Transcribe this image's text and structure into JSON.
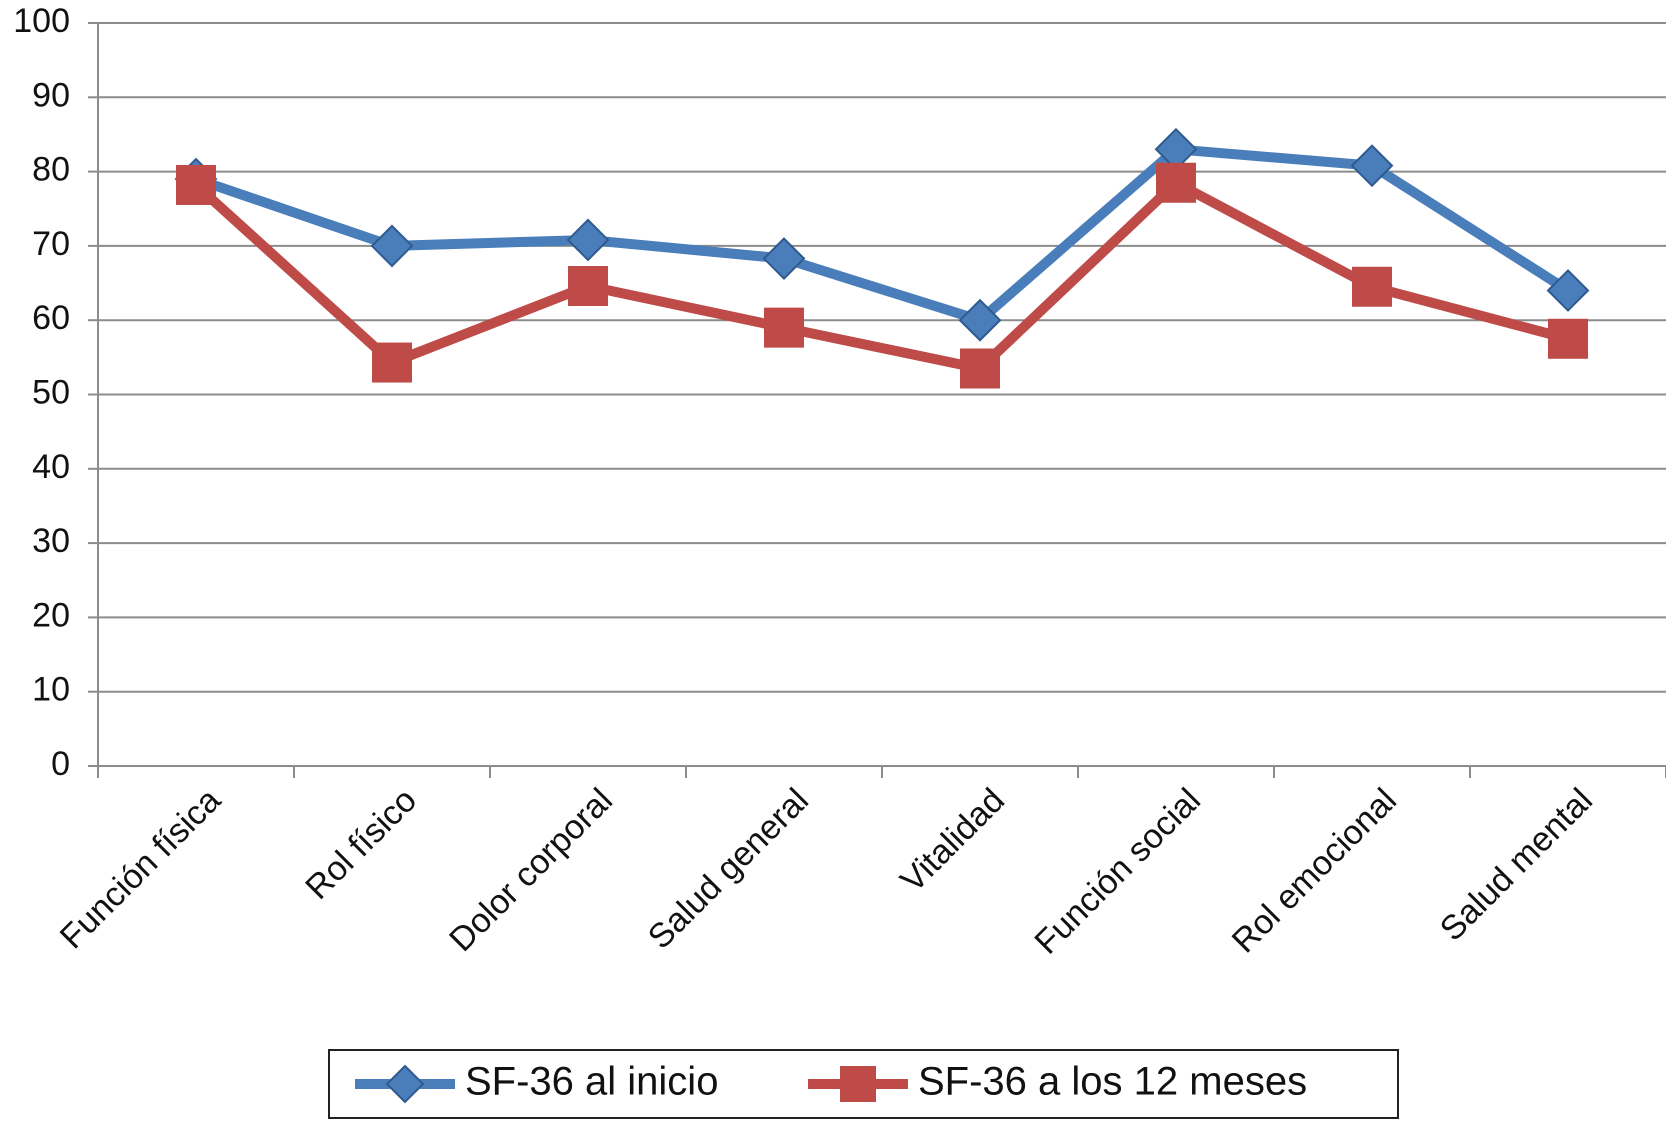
{
  "chart_data": {
    "type": "line",
    "categories": [
      "Función física",
      "Rol físico",
      "Dolor corporal",
      "Salud general",
      "Vitalidad",
      "Función social",
      "Rol emocional",
      "Salud mental"
    ],
    "series": [
      {
        "name": "SF-36 al inicio",
        "color": "#4a7ebb",
        "marker": "diamond",
        "values": [
          79,
          70,
          70.8,
          68.3,
          60,
          83,
          80.8,
          64
        ]
      },
      {
        "name": "SF-36 a los 12 meses",
        "color": "#be4b48",
        "marker": "square",
        "values": [
          78.2,
          54.3,
          64.6,
          59,
          53.5,
          78.5,
          64.5,
          57.5
        ]
      }
    ],
    "ylim": [
      0,
      100
    ],
    "yticks": [
      0,
      10,
      20,
      30,
      40,
      50,
      60,
      70,
      80,
      90,
      100
    ],
    "grid": true
  }
}
